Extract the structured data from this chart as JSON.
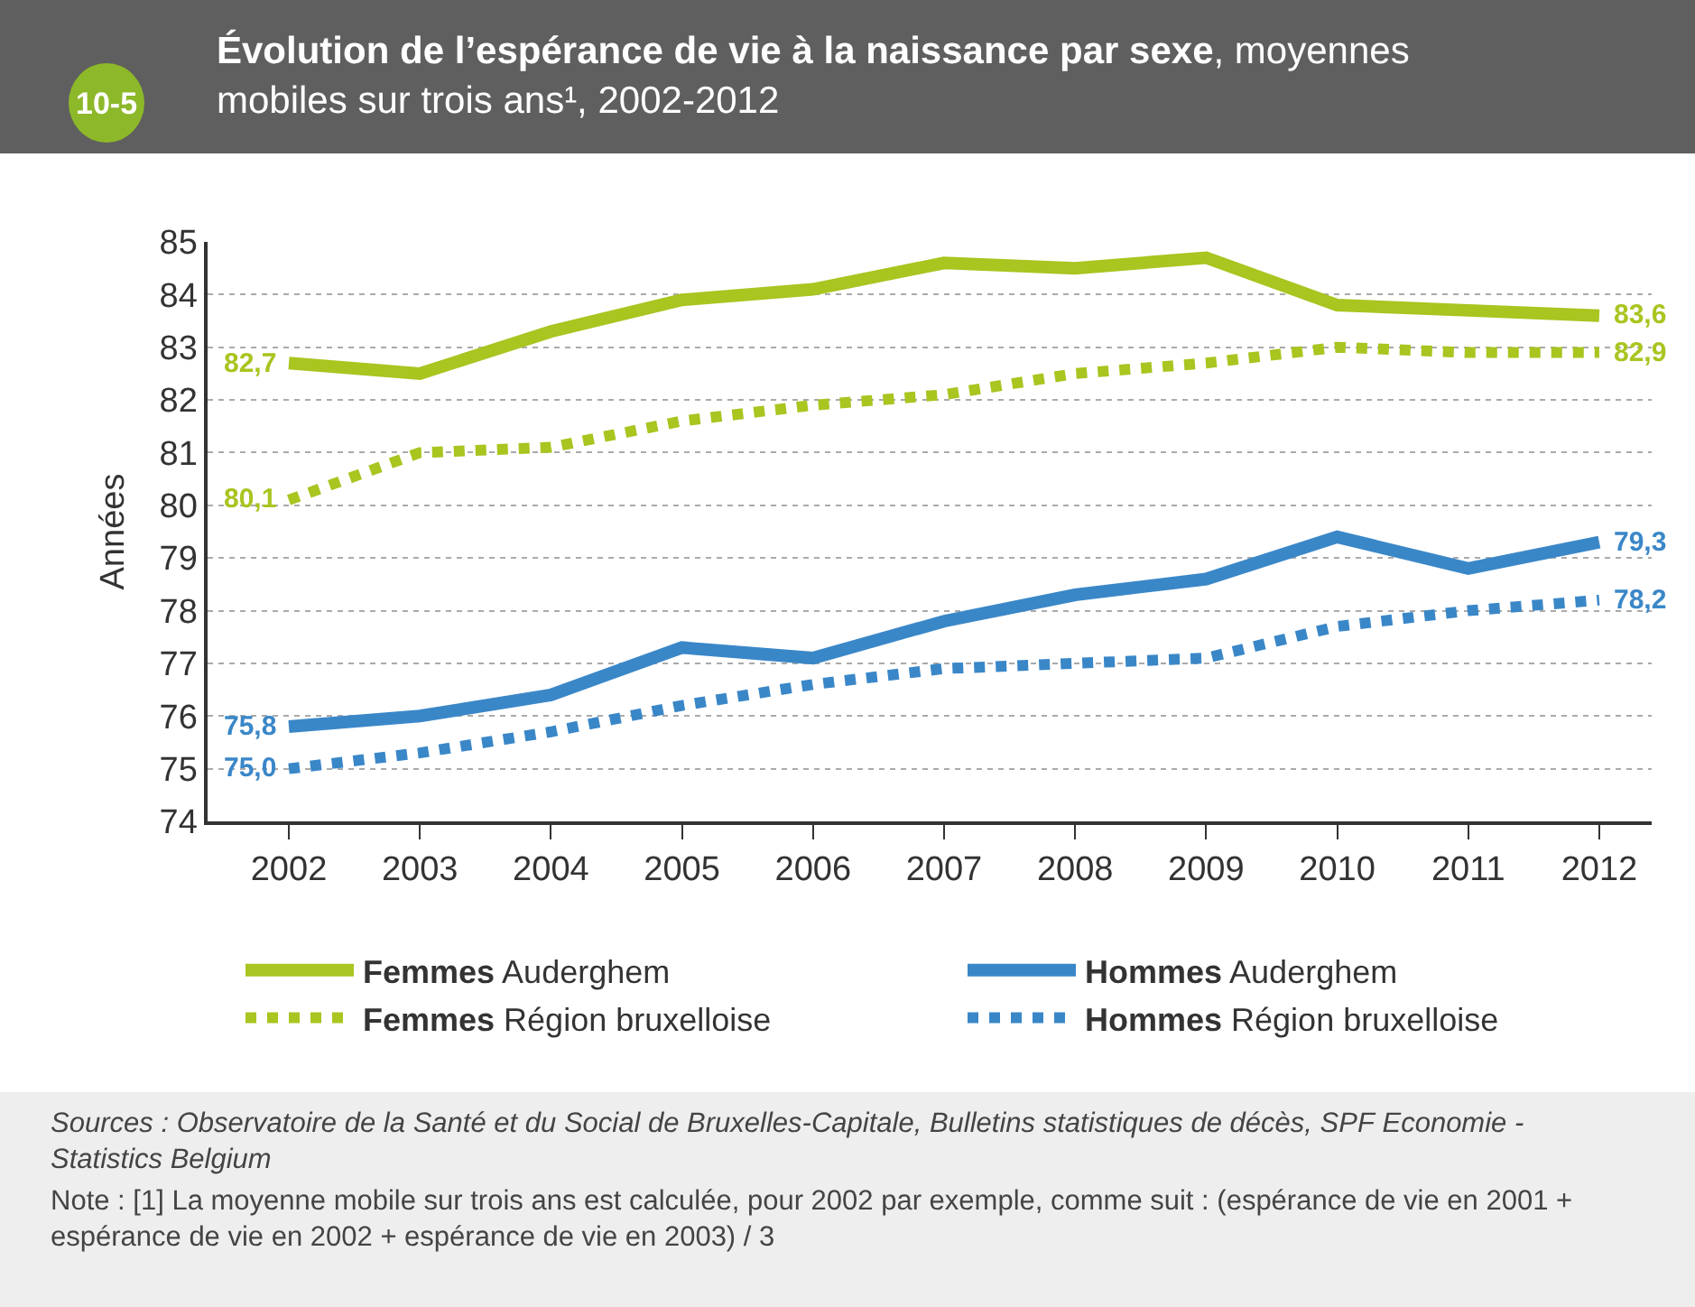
{
  "chart_data": {
    "type": "line",
    "title": "Évolution de l’espérance de vie à la naissance par sexe",
    "subtitle": ", moyennes mobiles sur trois ans¹, 2002-2012",
    "ylabel": "Années",
    "categories": [
      "2002",
      "2003",
      "2004",
      "2005",
      "2006",
      "2007",
      "2008",
      "2009",
      "2010",
      "2011",
      "2012"
    ],
    "series": [
      {
        "name": "Femmes Auderghem",
        "color": "#a8c520",
        "line_style": "solid",
        "values": [
          82.7,
          82.5,
          83.3,
          83.9,
          84.1,
          84.6,
          84.5,
          84.7,
          83.8,
          83.7,
          83.6
        ],
        "value_labels": [
          "82,7",
          null,
          null,
          null,
          null,
          null,
          null,
          null,
          null,
          null,
          "83,6"
        ]
      },
      {
        "name": "Hommes Auderghem",
        "color": "#3a87c8",
        "line_style": "solid",
        "values": [
          75.8,
          76.0,
          76.4,
          77.3,
          77.1,
          77.8,
          78.3,
          78.6,
          79.4,
          78.8,
          79.3
        ],
        "value_labels": [
          "75,8",
          null,
          null,
          null,
          null,
          null,
          null,
          null,
          null,
          null,
          "79,3"
        ]
      },
      {
        "name": "Femmes Région bruxelloise",
        "color": "#a8c520",
        "line_style": "dotted",
        "values": [
          80.1,
          81.0,
          81.1,
          81.6,
          81.9,
          82.1,
          82.5,
          82.7,
          83.0,
          82.9,
          82.9
        ],
        "value_labels": [
          "80,1",
          null,
          null,
          null,
          null,
          null,
          null,
          null,
          null,
          null,
          "82,9"
        ]
      },
      {
        "name": "Hommes Région bruxelloise",
        "color": "#3a87c8",
        "line_style": "dotted",
        "values": [
          75.0,
          75.3,
          75.7,
          76.2,
          76.6,
          76.9,
          77.0,
          77.1,
          77.7,
          78.0,
          78.2
        ],
        "value_labels": [
          "75,0",
          null,
          null,
          null,
          null,
          null,
          null,
          null,
          null,
          null,
          "78,2"
        ]
      }
    ],
    "ylim": [
      74,
      85
    ],
    "yticks": [
      74,
      75,
      76,
      77,
      78,
      79,
      80,
      81,
      82,
      83,
      84,
      85
    ],
    "grid": "y",
    "legend": "bottom",
    "marker": "none",
    "annotations": [
      "10-5",
      "Sources : Observatoire de la Santé et du Social de Bruxelles-Capitale, Bulletins statistiques de décès, SPF Economie - Statistics Belgium",
      "Note : [1] La moyenne mobile sur trois ans est calculée, pour 2002 par exemple, comme suit : (espérance de vie en 2001 + espérance de vie en 2002 + espérance de vie en 2003) / 3"
    ]
  }
}
